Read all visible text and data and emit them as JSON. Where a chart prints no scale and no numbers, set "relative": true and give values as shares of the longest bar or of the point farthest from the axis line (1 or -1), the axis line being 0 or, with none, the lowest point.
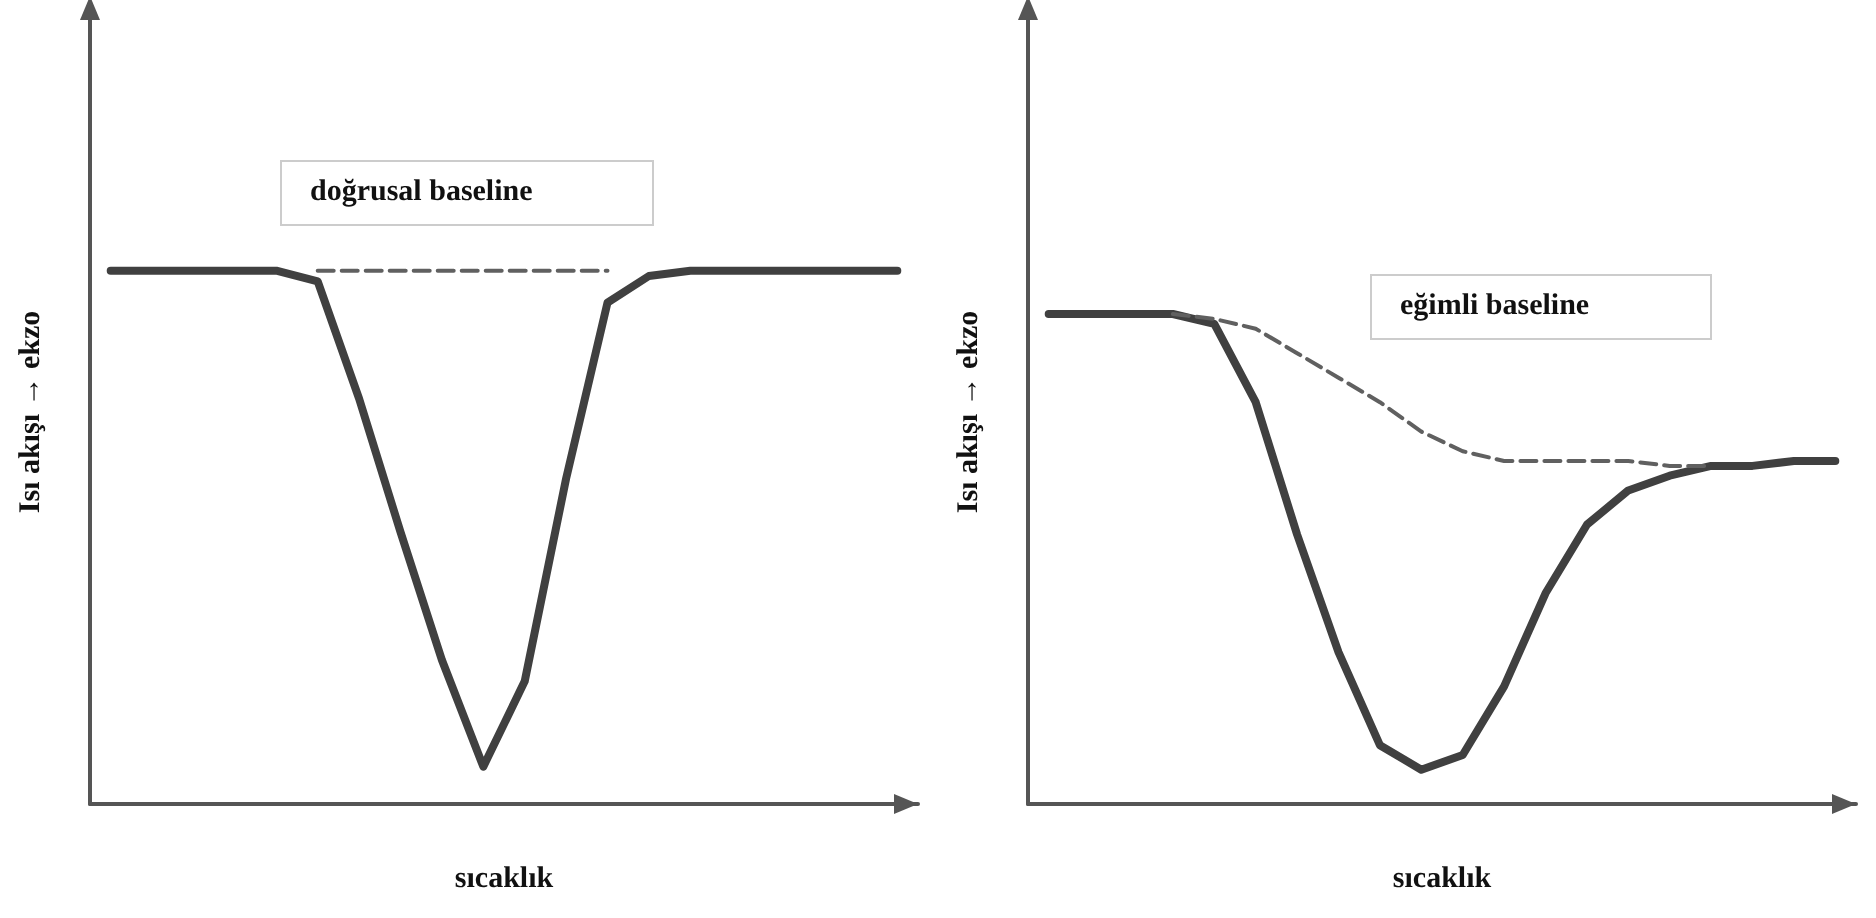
{
  "chart_data": [
    {
      "type": "line",
      "relative": true,
      "xlabel": "sıcaklık",
      "ylabel": "Isı akışı → ekzo",
      "annotations": [
        "doğrusal baseline"
      ],
      "marker": "none",
      "grid": false,
      "categories": [
        null,
        null,
        null,
        null,
        null,
        null,
        null,
        null,
        null,
        null,
        null,
        null,
        null,
        null,
        null,
        null,
        null,
        null,
        null,
        null
      ],
      "series": [
        {
          "color": "#404040",
          "line_style": "solid",
          "values": [
            1.0,
            1.0,
            1.0,
            1.0,
            1.0,
            0.98,
            0.76,
            0.51,
            0.27,
            0.07,
            0.23,
            0.61,
            0.94,
            0.99,
            1.0,
            1.0,
            1.0,
            1.0,
            1.0,
            1.0
          ]
        },
        {
          "color": "#606060",
          "line_style": "dashed",
          "values": [
            null,
            null,
            null,
            null,
            null,
            1.0,
            1.0,
            1.0,
            1.0,
            1.0,
            1.0,
            1.0,
            1.0,
            null,
            null,
            null,
            null,
            null,
            null,
            null
          ]
        }
      ]
    },
    {
      "type": "line",
      "relative": true,
      "xlabel": "sıcaklık",
      "ylabel": "Isı akışı → ekzo",
      "annotations": [
        "eğimli baseline"
      ],
      "marker": "none",
      "grid": false,
      "categories": [
        null,
        null,
        null,
        null,
        null,
        null,
        null,
        null,
        null,
        null,
        null,
        null,
        null,
        null,
        null,
        null,
        null,
        null,
        null,
        null
      ],
      "series": [
        {
          "color": "#404040",
          "line_style": "solid",
          "values": [
            1.0,
            1.0,
            1.0,
            1.0,
            0.98,
            0.82,
            0.55,
            0.31,
            0.12,
            0.07,
            0.1,
            0.24,
            0.43,
            0.57,
            0.64,
            0.67,
            0.69,
            0.69,
            0.7,
            0.7
          ]
        },
        {
          "color": "#606060",
          "line_style": "dashed",
          "values": [
            null,
            null,
            null,
            1.0,
            0.99,
            0.97,
            0.92,
            0.87,
            0.82,
            0.76,
            0.72,
            0.7,
            0.7,
            0.7,
            0.7,
            0.69,
            0.69,
            null,
            null,
            null
          ]
        }
      ]
    }
  ]
}
